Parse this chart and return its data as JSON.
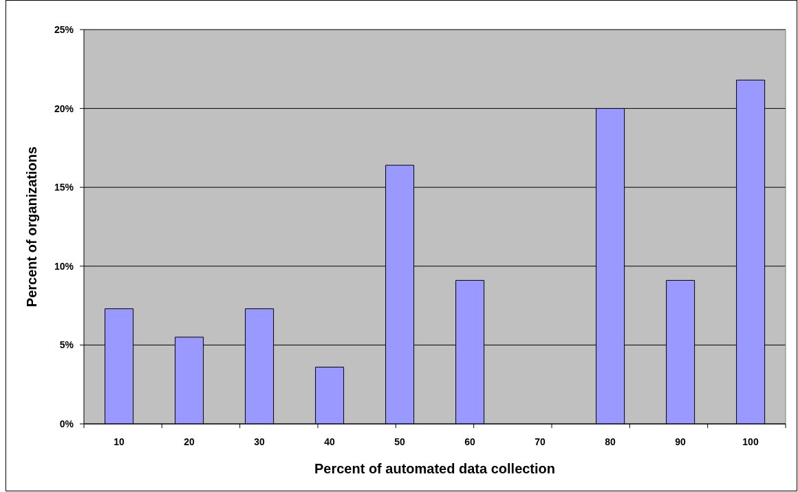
{
  "chart_data": {
    "type": "bar",
    "xlabel": "Percent of automated data collection",
    "ylabel": "Percent of organizations",
    "categories": [
      "10",
      "20",
      "30",
      "40",
      "50",
      "60",
      "70",
      "80",
      "90",
      "100"
    ],
    "values": [
      7.3,
      5.5,
      7.3,
      3.6,
      16.4,
      9.1,
      0,
      20,
      9.1,
      21.8
    ],
    "color": "#9999ff",
    "ylim": [
      0,
      25
    ],
    "yticks": [
      {
        "value": 0,
        "label": "0%"
      },
      {
        "value": 5,
        "label": "5%"
      },
      {
        "value": 10,
        "label": "10%"
      },
      {
        "value": 15,
        "label": "15%"
      },
      {
        "value": 20,
        "label": "20%"
      },
      {
        "value": 25,
        "label": "25%"
      }
    ],
    "grid": "y"
  }
}
